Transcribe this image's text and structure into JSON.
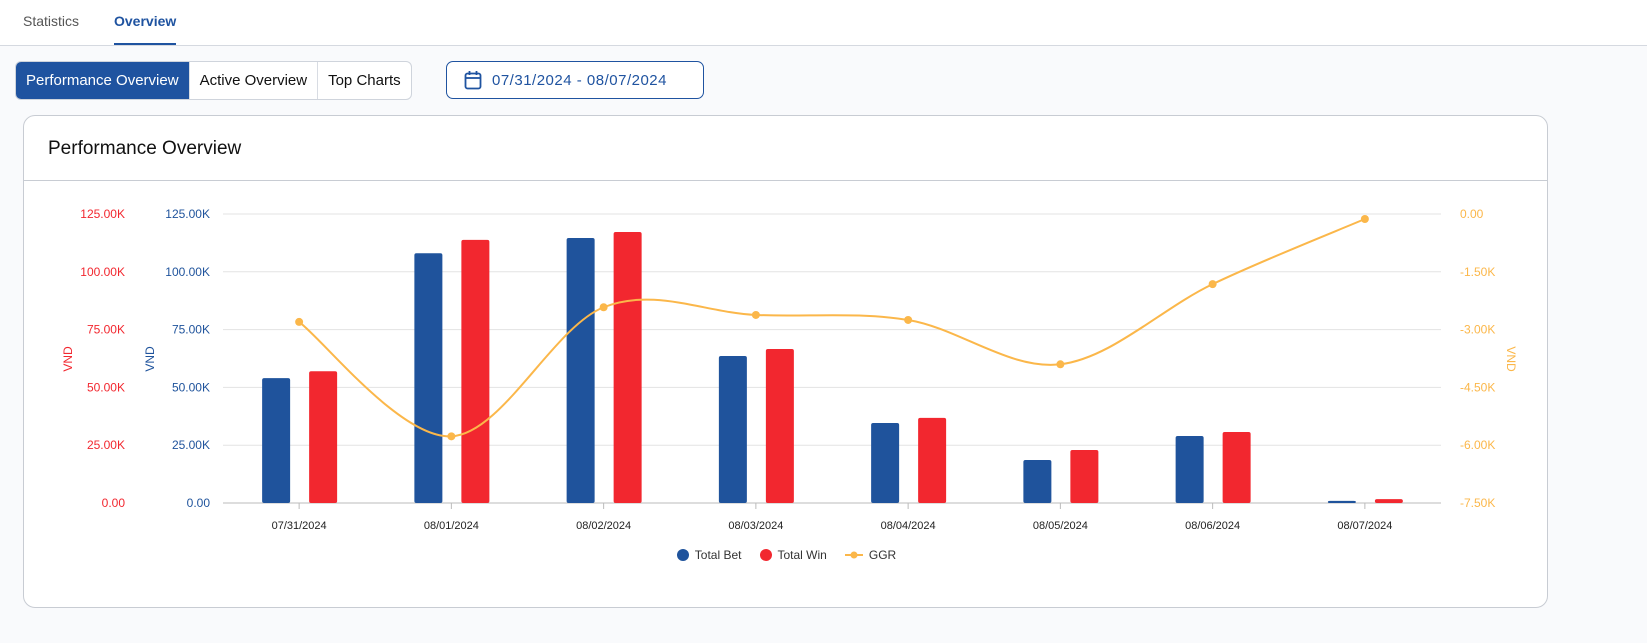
{
  "nav": {
    "tabs": [
      {
        "label": "Statistics"
      },
      {
        "label": "Overview",
        "active": true
      }
    ]
  },
  "segments": [
    {
      "label": "Performance Overview",
      "active": true
    },
    {
      "label": "Active Overview"
    },
    {
      "label": "Top Charts"
    }
  ],
  "date_range": {
    "value": "07/31/2024 - 08/07/2024",
    "icon": "calendar-icon"
  },
  "card": {
    "title": "Performance Overview"
  },
  "colors": {
    "accent": "#1f53a0",
    "bet": "#1f539c",
    "win": "#f2272f",
    "ggr": "#fbb74a"
  },
  "chart_data": {
    "type": "bar+line",
    "categories": [
      "07/31/2024",
      "08/01/2024",
      "08/02/2024",
      "08/03/2024",
      "08/04/2024",
      "08/05/2024",
      "08/06/2024",
      "08/07/2024"
    ],
    "series": [
      {
        "name": "Total Bet",
        "type": "bar",
        "axis": "left-blue",
        "values": [
          54000,
          108000,
          114600,
          63600,
          34600,
          18600,
          29000,
          900
        ]
      },
      {
        "name": "Total Win",
        "type": "bar",
        "axis": "left-red",
        "values": [
          57000,
          113800,
          117200,
          66600,
          36800,
          22900,
          30700,
          1700
        ]
      },
      {
        "name": "GGR",
        "type": "line",
        "axis": "right",
        "values": [
          -2800,
          -5770,
          -2420,
          -2620,
          -2750,
          -3900,
          -1820,
          -130
        ]
      }
    ],
    "axes": {
      "left_red": {
        "label": "VND",
        "range": [
          0,
          125000
        ],
        "ticks": [
          "0.00",
          "25.00K",
          "50.00K",
          "75.00K",
          "100.00K",
          "125.00K"
        ]
      },
      "left_blue": {
        "label": "VND",
        "range": [
          0,
          125000
        ],
        "ticks": [
          "0.00",
          "25.00K",
          "50.00K",
          "75.00K",
          "100.00K",
          "125.00K"
        ]
      },
      "right": {
        "label": "VND",
        "range": [
          -7500,
          0
        ],
        "ticks": [
          "-7.50K",
          "-6.00K",
          "-4.50K",
          "-3.00K",
          "-1.50K",
          "0.00"
        ]
      }
    },
    "grid": true,
    "legend": "bottom"
  }
}
